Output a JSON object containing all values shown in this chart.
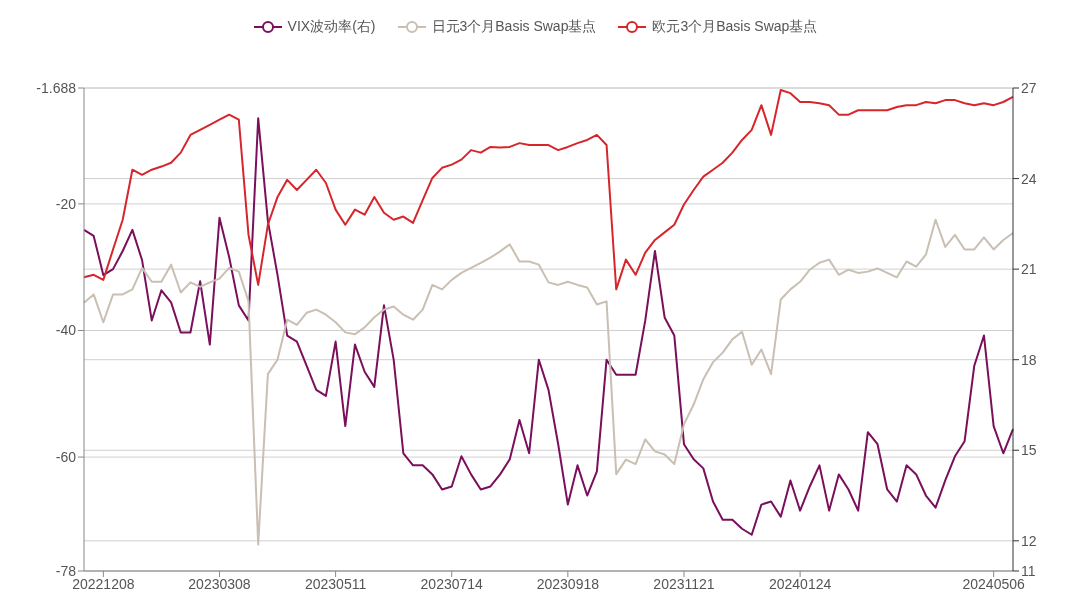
{
  "chart_data": {
    "type": "line",
    "categories": [
      null,
      null,
      "20221208",
      null,
      null,
      null,
      null,
      null,
      null,
      null,
      null,
      null,
      null,
      null,
      "20230308",
      null,
      null,
      null,
      null,
      null,
      null,
      null,
      null,
      null,
      null,
      null,
      "20230511",
      null,
      null,
      null,
      null,
      null,
      null,
      null,
      null,
      null,
      null,
      null,
      "20230714",
      null,
      null,
      null,
      null,
      null,
      null,
      null,
      null,
      null,
      null,
      null,
      "20230918",
      null,
      null,
      null,
      null,
      null,
      null,
      null,
      null,
      null,
      null,
      null,
      "20231121",
      null,
      null,
      null,
      null,
      null,
      null,
      null,
      null,
      null,
      null,
      null,
      "20240124",
      null,
      null,
      null,
      null,
      null,
      null,
      null,
      null,
      null,
      null,
      null,
      null,
      null,
      null,
      null,
      null,
      null,
      null,
      null,
      "20240506",
      null,
      null
    ],
    "series": [
      {
        "name": "VIX波动率(右)",
        "color": "#7a0f5c",
        "axis": "y2",
        "values": [
          22.3,
          22.1,
          20.8,
          21.0,
          21.6,
          22.3,
          21.3,
          19.3,
          20.3,
          19.9,
          18.9,
          18.9,
          20.6,
          18.5,
          22.7,
          21.4,
          19.8,
          19.3,
          26.0,
          22.6,
          20.8,
          18.8,
          18.6,
          17.8,
          17.0,
          16.8,
          18.6,
          15.8,
          18.5,
          17.6,
          17.1,
          19.8,
          18.0,
          14.9,
          14.5,
          14.5,
          14.2,
          13.7,
          13.8,
          14.8,
          14.2,
          13.7,
          13.8,
          14.2,
          14.7,
          16.0,
          14.9,
          18.0,
          17.0,
          15.2,
          13.2,
          14.5,
          13.5,
          14.3,
          18.0,
          17.5,
          17.5,
          17.5,
          19.3,
          21.6,
          19.4,
          18.8,
          15.2,
          14.7,
          14.4,
          13.3,
          12.7,
          12.7,
          12.4,
          12.2,
          13.2,
          13.3,
          12.8,
          14.0,
          13.0,
          13.8,
          14.5,
          13.0,
          14.2,
          13.7,
          13.0,
          15.6,
          15.2,
          13.7,
          13.3,
          14.5,
          14.2,
          13.5,
          13.1,
          14.0,
          14.8,
          15.3,
          17.8,
          18.8,
          15.8,
          14.9,
          15.7
        ]
      },
      {
        "name": "日元3个月Basis Swap基点",
        "color": "#c9bfb3",
        "values": [
          -35.6,
          -34.3,
          -38.7,
          -34.3,
          -34.3,
          -33.5,
          -30.1,
          -32.3,
          -32.3,
          -29.6,
          -34.0,
          -32.4,
          -33.1,
          -32.4,
          -31.8,
          -30.1,
          -30.7,
          -35.4,
          -73.8,
          -46.9,
          -44.6,
          -38.3,
          -39.1,
          -37.2,
          -36.7,
          -37.5,
          -38.7,
          -40.3,
          -40.6,
          -39.5,
          -37.9,
          -36.7,
          -36.2,
          -37.5,
          -38.3,
          -36.7,
          -32.8,
          -33.5,
          -32.0,
          -30.9,
          -30.1,
          -29.3,
          -28.5,
          -27.5,
          -26.4,
          -29.1,
          -29.1,
          -29.6,
          -32.4,
          -32.8,
          -32.3,
          -32.8,
          -33.2,
          -35.9,
          -35.4,
          -62.7,
          -60.4,
          -61.1,
          -57.2,
          -59.1,
          -59.6,
          -61.1,
          -54.8,
          -51.7,
          -47.7,
          -45.0,
          -43.5,
          -41.4,
          -40.2,
          -45.4,
          -43.0,
          -46.9,
          -35.1,
          -33.5,
          -32.3,
          -30.4,
          -29.3,
          -28.8,
          -31.2,
          -30.4,
          -30.9,
          -30.7,
          -30.2,
          -30.9,
          -31.6,
          -29.1,
          -29.9,
          -28.0,
          -22.5,
          -26.8,
          -24.9,
          -27.2,
          -27.2,
          -25.3,
          -27.2,
          -25.7,
          -24.6
        ]
      },
      {
        "name": "欧元3个月Basis Swap基点",
        "color": "#d7262b",
        "values": [
          -31.6,
          -31.2,
          -32.0,
          -27.2,
          -22.5,
          -14.6,
          -15.4,
          -14.6,
          -14.1,
          -13.5,
          -11.9,
          -9.1,
          -8.3,
          -7.5,
          -6.7,
          -5.9,
          -6.7,
          -24.9,
          -32.8,
          -23.3,
          -18.9,
          -16.2,
          -17.8,
          -16.2,
          -14.6,
          -16.7,
          -20.9,
          -23.3,
          -20.9,
          -21.7,
          -18.9,
          -21.4,
          -22.5,
          -22.0,
          -23.0,
          -19.4,
          -15.9,
          -14.3,
          -13.8,
          -13.0,
          -11.5,
          -11.9,
          -11.0,
          -11.1,
          -11.0,
          -10.4,
          -10.7,
          -10.7,
          -10.7,
          -11.5,
          -11.0,
          -10.4,
          -9.9,
          -9.1,
          -10.7,
          -33.5,
          -28.8,
          -31.2,
          -27.7,
          -25.7,
          -24.5,
          -23.3,
          -20.1,
          -17.8,
          -15.7,
          -14.6,
          -13.5,
          -11.9,
          -9.9,
          -8.3,
          -4.4,
          -9.1,
          -2.0,
          -2.5,
          -3.9,
          -3.9,
          -4.1,
          -4.4,
          -5.9,
          -5.9,
          -5.2,
          -5.2,
          -5.2,
          -5.2,
          -4.7,
          -4.4,
          -4.4,
          -3.9,
          -4.1,
          -3.6,
          -3.6,
          -4.1,
          -4.4,
          -4.1,
          -4.4,
          -3.9,
          -3.1
        ]
      }
    ],
    "ylim": [
      -78,
      -1.688
    ],
    "yticks": [
      -1.688,
      -20,
      -40,
      -60,
      -78
    ],
    "y2lim": [
      11,
      27
    ],
    "y2ticks": [
      27,
      24,
      21,
      18,
      15,
      12,
      11
    ],
    "grid": "y",
    "legend": "top"
  }
}
